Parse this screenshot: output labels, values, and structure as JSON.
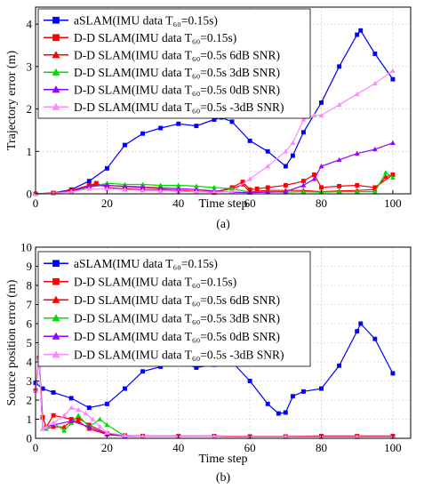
{
  "chart_data": [
    {
      "type": "line",
      "caption": "(a)",
      "xlabel": "Time step",
      "ylabel": "Trajectory error (m)",
      "xlim": [
        0,
        105
      ],
      "ylim": [
        0,
        4.4
      ],
      "xticks": [
        0,
        20,
        40,
        60,
        80,
        100
      ],
      "yticks": [
        0,
        1,
        2,
        3,
        4
      ],
      "grid": true,
      "legend_position": "top-left",
      "series": [
        {
          "name": "aSLAM(IMU data T₆₀=0.15s)",
          "color": "#0000ff",
          "marker": "square",
          "x": [
            0,
            5,
            10,
            15,
            20,
            25,
            30,
            35,
            40,
            45,
            50,
            52,
            55,
            60,
            65,
            70,
            72,
            75,
            80,
            85,
            90,
            91,
            95,
            100
          ],
          "y": [
            0,
            0.02,
            0.1,
            0.3,
            0.6,
            1.15,
            1.42,
            1.55,
            1.65,
            1.6,
            1.75,
            1.8,
            1.7,
            1.25,
            1.0,
            0.65,
            0.9,
            1.45,
            2.15,
            3.0,
            3.75,
            3.85,
            3.3,
            2.7
          ]
        },
        {
          "name": "D-D SLAM(IMU data T₆₀=0.15s)",
          "color": "#ff0000",
          "marker": "square",
          "x": [
            0,
            5,
            10,
            15,
            17,
            20,
            25,
            30,
            35,
            40,
            45,
            50,
            55,
            58,
            60,
            62,
            65,
            70,
            75,
            78,
            80,
            85,
            90,
            95,
            100
          ],
          "y": [
            0,
            0.02,
            0.08,
            0.2,
            0.25,
            0.15,
            0.12,
            0.1,
            0.1,
            0.08,
            0.06,
            0.03,
            0.15,
            0.28,
            0.1,
            0.12,
            0.15,
            0.2,
            0.3,
            0.45,
            0.15,
            0.18,
            0.2,
            0.15,
            0.45
          ]
        },
        {
          "name": "D-D SLAM(IMU data T₆₀=0.5s 6dB SNR)",
          "color": "#ff0000",
          "marker": "triangle",
          "x": [
            0,
            5,
            10,
            15,
            17,
            20,
            25,
            30,
            35,
            40,
            45,
            50,
            55,
            58,
            60,
            65,
            70,
            75,
            80,
            85,
            90,
            95,
            98,
            100
          ],
          "y": [
            0,
            0.01,
            0.08,
            0.2,
            0.22,
            0.2,
            0.18,
            0.16,
            0.14,
            0.12,
            0.1,
            0.05,
            0.12,
            0.22,
            0.05,
            0.08,
            0.08,
            0.08,
            0.05,
            0.07,
            0.08,
            0.1,
            0.4,
            0.45
          ]
        },
        {
          "name": "D-D SLAM(IMU data T₆₀=0.5s 3dB SNR)",
          "color": "#00dd00",
          "marker": "triangle",
          "x": [
            0,
            5,
            10,
            15,
            20,
            25,
            30,
            35,
            40,
            45,
            50,
            55,
            60,
            65,
            70,
            75,
            80,
            85,
            90,
            95,
            98,
            100
          ],
          "y": [
            0,
            0.01,
            0.05,
            0.15,
            0.25,
            0.22,
            0.22,
            0.2,
            0.2,
            0.18,
            0.15,
            0.12,
            0.04,
            0.05,
            0.04,
            0.05,
            0.04,
            0.05,
            0.05,
            0.05,
            0.5,
            0.38
          ]
        },
        {
          "name": "D-D SLAM(IMU data T₆₀=0.5s 0dB SNR)",
          "color": "#9900ff",
          "marker": "triangle",
          "x": [
            0,
            5,
            10,
            15,
            20,
            25,
            30,
            35,
            40,
            45,
            50,
            55,
            60,
            65,
            70,
            75,
            78,
            80,
            85,
            90,
            95,
            100
          ],
          "y": [
            0,
            0.01,
            0.06,
            0.18,
            0.2,
            0.17,
            0.15,
            0.13,
            0.12,
            0.1,
            0.07,
            0.04,
            0.03,
            0.04,
            0.05,
            0.2,
            0.35,
            0.65,
            0.8,
            0.95,
            1.05,
            1.2
          ]
        },
        {
          "name": "D-D SLAM(IMU data T₆₀=0.5s -3dB SNR)",
          "color": "#ff88ff",
          "marker": "triangle",
          "x": [
            0,
            5,
            10,
            15,
            20,
            25,
            30,
            35,
            40,
            45,
            50,
            55,
            60,
            65,
            70,
            72,
            75,
            78,
            80,
            85,
            90,
            95,
            100
          ],
          "y": [
            0,
            0.01,
            0.05,
            0.12,
            0.12,
            0.1,
            0.08,
            0.07,
            0.06,
            0.05,
            0.04,
            0.05,
            0.35,
            0.65,
            1.0,
            1.2,
            1.75,
            1.85,
            1.85,
            2.1,
            2.35,
            2.6,
            2.9
          ]
        }
      ]
    },
    {
      "type": "line",
      "caption": "(b)",
      "xlabel": "Time step",
      "ylabel": "Source position error (m)",
      "xlim": [
        0,
        105
      ],
      "ylim": [
        0,
        10
      ],
      "xticks": [
        0,
        20,
        40,
        60,
        80,
        100
      ],
      "yticks": [
        0,
        1,
        2,
        3,
        4,
        5,
        6,
        7,
        8,
        9,
        10
      ],
      "grid": true,
      "legend_position": "top-left",
      "series": [
        {
          "name": "aSLAM(IMU data T₆₀=0.15s)",
          "color": "#0000ff",
          "marker": "square",
          "x": [
            0,
            2,
            5,
            10,
            15,
            20,
            25,
            30,
            35,
            40,
            45,
            50,
            53,
            55,
            60,
            65,
            68,
            70,
            72,
            75,
            80,
            85,
            90,
            91,
            95,
            100
          ],
          "y": [
            2.9,
            2.6,
            2.4,
            2.1,
            1.6,
            1.8,
            2.6,
            3.5,
            3.75,
            4.0,
            3.7,
            3.85,
            4.1,
            4.0,
            3.0,
            1.8,
            1.3,
            1.35,
            2.2,
            2.45,
            2.6,
            3.8,
            5.6,
            6.0,
            5.2,
            3.4
          ]
        },
        {
          "name": "D-D SLAM(IMU data T₆₀=0.15s)",
          "color": "#ff0000",
          "marker": "square",
          "x": [
            0,
            1,
            2,
            3,
            5,
            10,
            12,
            15,
            20,
            25,
            30,
            40,
            50,
            60,
            70,
            80,
            90,
            100
          ],
          "y": [
            2.5,
            4.2,
            1.1,
            0.6,
            1.2,
            1.0,
            1.05,
            0.7,
            0.25,
            0.15,
            0.12,
            0.12,
            0.12,
            0.1,
            0.1,
            0.12,
            0.12,
            0.12
          ]
        },
        {
          "name": "D-D SLAM(IMU data T₆₀=0.5s 6dB SNR)",
          "color": "#ff0000",
          "marker": "triangle",
          "x": [
            0,
            1,
            2,
            3,
            5,
            8,
            10,
            12,
            15,
            20,
            25,
            30,
            40,
            50,
            60,
            70,
            80,
            90,
            100
          ],
          "y": [
            2.5,
            4.2,
            0.5,
            0.5,
            0.6,
            0.6,
            0.9,
            0.9,
            0.5,
            0.2,
            0.12,
            0.1,
            0.1,
            0.1,
            0.08,
            0.08,
            0.08,
            0.08,
            0.08
          ]
        },
        {
          "name": "D-D SLAM(IMU data T₆₀=0.5s 3dB SNR)",
          "color": "#00dd00",
          "marker": "triangle",
          "x": [
            0,
            1,
            2,
            3,
            5,
            8,
            10,
            12,
            15,
            18,
            20,
            25,
            30,
            40,
            50,
            60,
            70,
            80,
            90,
            100
          ],
          "y": [
            2.5,
            4.2,
            0.5,
            0.5,
            0.8,
            0.4,
            0.8,
            1.2,
            0.6,
            1.0,
            0.7,
            0.12,
            0.1,
            0.1,
            0.1,
            0.08,
            0.08,
            0.08,
            0.08,
            0.08
          ]
        },
        {
          "name": "D-D SLAM(IMU data T₆₀=0.5s 0dB SNR)",
          "color": "#9900ff",
          "marker": "triangle",
          "x": [
            0,
            1,
            2,
            3,
            5,
            10,
            15,
            20,
            25,
            30,
            40,
            50,
            60,
            70,
            80,
            90,
            100
          ],
          "y": [
            2.5,
            4.2,
            0.5,
            0.6,
            0.7,
            0.9,
            0.6,
            0.2,
            0.12,
            0.1,
            0.1,
            0.1,
            0.08,
            0.08,
            0.08,
            0.08,
            0.08
          ]
        },
        {
          "name": "D-D SLAM(IMU data T₆₀=0.5s -3dB SNR)",
          "color": "#ff88ff",
          "marker": "triangle",
          "x": [
            0,
            1,
            2,
            3,
            5,
            8,
            10,
            12,
            14,
            16,
            18,
            20,
            25,
            30,
            40,
            50,
            60,
            70,
            80,
            90,
            100
          ],
          "y": [
            2.5,
            4.2,
            0.5,
            0.6,
            0.8,
            1.2,
            1.6,
            1.5,
            1.3,
            1.0,
            0.6,
            0.3,
            0.15,
            0.1,
            0.1,
            0.1,
            0.08,
            0.08,
            0.08,
            0.08,
            0.08
          ]
        }
      ]
    }
  ]
}
